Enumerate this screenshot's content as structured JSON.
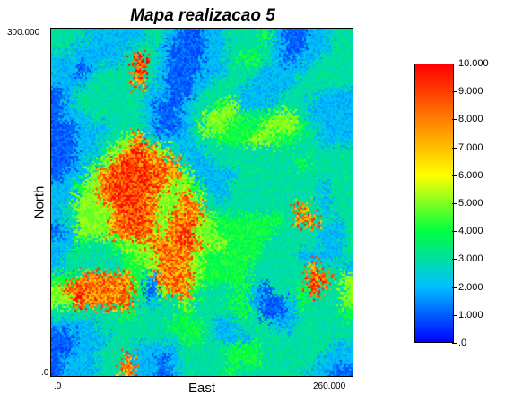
{
  "chart_data": {
    "type": "heatmap",
    "title": "Mapa realizacao 5",
    "xlabel": "East",
    "ylabel": "North",
    "xlim": [
      0,
      260
    ],
    "ylim": [
      0,
      300
    ],
    "x_tick_labels": [
      ".0",
      "260.000"
    ],
    "y_tick_labels": [
      ".0",
      "300.000"
    ],
    "colorbar": {
      "range": [
        0,
        10
      ],
      "tick_labels": [
        ".0",
        "1.000",
        "2.000",
        "3.000",
        "4.000",
        "5.000",
        "6.000",
        "7.000",
        "8.000",
        "9.000",
        "10.000"
      ],
      "colors": [
        "#0000ff",
        "#00bfff",
        "#00ff40",
        "#ffff00",
        "#ff8000",
        "#ff0000"
      ]
    },
    "grid": {
      "cols": 26,
      "rows": 30,
      "cell_size_data_units": 10,
      "values": [
        [
          3,
          3,
          3,
          2,
          2,
          2,
          2,
          2,
          3,
          3,
          2,
          1,
          1,
          2,
          2,
          3,
          3,
          3,
          4,
          2,
          1,
          1,
          2,
          2,
          3,
          3
        ],
        [
          3,
          3,
          2,
          2,
          2,
          2,
          2,
          3,
          3,
          2,
          1,
          1,
          1,
          2,
          2,
          3,
          3,
          3,
          3,
          2,
          1,
          1,
          2,
          2,
          3,
          3
        ],
        [
          2,
          2,
          2,
          2,
          2,
          2,
          3,
          9,
          3,
          2,
          1,
          1,
          1,
          2,
          2,
          3,
          4,
          4,
          3,
          2,
          1,
          2,
          2,
          3,
          3,
          3
        ],
        [
          2,
          2,
          1,
          2,
          3,
          3,
          3,
          9,
          3,
          2,
          1,
          1,
          1,
          2,
          2,
          3,
          3,
          3,
          2,
          2,
          2,
          2,
          3,
          3,
          3,
          3
        ],
        [
          2,
          2,
          2,
          3,
          3,
          3,
          3,
          8,
          3,
          2,
          1,
          1,
          2,
          2,
          3,
          3,
          3,
          2,
          2,
          2,
          2,
          3,
          3,
          3,
          3,
          3
        ],
        [
          1,
          2,
          3,
          3,
          3,
          3,
          3,
          3,
          2,
          2,
          1,
          1,
          2,
          3,
          3,
          3,
          2,
          2,
          2,
          2,
          3,
          3,
          3,
          2,
          2,
          2
        ],
        [
          1,
          2,
          3,
          3,
          3,
          3,
          3,
          3,
          2,
          1,
          1,
          2,
          3,
          3,
          4,
          5,
          2,
          2,
          2,
          3,
          3,
          3,
          2,
          2,
          2,
          2
        ],
        [
          1,
          2,
          2,
          3,
          3,
          3,
          3,
          3,
          2,
          1,
          1,
          2,
          3,
          5,
          5,
          5,
          4,
          3,
          4,
          5,
          5,
          3,
          2,
          2,
          2,
          2
        ],
        [
          1,
          1,
          2,
          2,
          2,
          3,
          3,
          3,
          2,
          1,
          1,
          2,
          3,
          5,
          5,
          4,
          4,
          4,
          5,
          5,
          5,
          4,
          3,
          2,
          2,
          2
        ],
        [
          1,
          1,
          2,
          2,
          3,
          3,
          5,
          8,
          3,
          2,
          2,
          2,
          3,
          3,
          4,
          4,
          4,
          5,
          5,
          4,
          4,
          3,
          3,
          2,
          2,
          2
        ],
        [
          1,
          1,
          2,
          2,
          3,
          5,
          8,
          9,
          8,
          5,
          3,
          2,
          2,
          3,
          3,
          3,
          3,
          3,
          3,
          3,
          3,
          3,
          3,
          3,
          3,
          3
        ],
        [
          1,
          1,
          2,
          3,
          5,
          8,
          9,
          9,
          8,
          8,
          8,
          3,
          2,
          2,
          3,
          3,
          3,
          3,
          3,
          3,
          3,
          4,
          3,
          3,
          3,
          3
        ],
        [
          1,
          2,
          2,
          5,
          8,
          9,
          9,
          9,
          9,
          8,
          8,
          5,
          2,
          2,
          2,
          2,
          3,
          3,
          3,
          3,
          3,
          3,
          3,
          3,
          3,
          3
        ],
        [
          2,
          2,
          4,
          5,
          8,
          9,
          9,
          9,
          9,
          8,
          5,
          5,
          4,
          2,
          2,
          3,
          3,
          3,
          3,
          3,
          3,
          3,
          3,
          2,
          3,
          3
        ],
        [
          2,
          2,
          5,
          5,
          8,
          9,
          9,
          9,
          8,
          5,
          5,
          8,
          5,
          3,
          2,
          3,
          3,
          3,
          3,
          3,
          3,
          3,
          3,
          2,
          3,
          3
        ],
        [
          2,
          3,
          5,
          5,
          5,
          8,
          9,
          9,
          8,
          5,
          5,
          8,
          8,
          3,
          3,
          3,
          3,
          3,
          3,
          3,
          3,
          8,
          3,
          2,
          3,
          3
        ],
        [
          2,
          3,
          5,
          5,
          5,
          8,
          9,
          9,
          8,
          5,
          8,
          8,
          8,
          5,
          4,
          4,
          4,
          4,
          4,
          4,
          3,
          8,
          8,
          3,
          2,
          3
        ],
        [
          1,
          2,
          5,
          5,
          5,
          8,
          8,
          9,
          8,
          5,
          8,
          9,
          5,
          5,
          4,
          4,
          4,
          4,
          4,
          3,
          3,
          3,
          3,
          2,
          2,
          3
        ],
        [
          2,
          2,
          4,
          3,
          3,
          4,
          5,
          5,
          8,
          8,
          8,
          9,
          8,
          5,
          5,
          4,
          4,
          4,
          3,
          3,
          3,
          3,
          3,
          2,
          2,
          3
        ],
        [
          2,
          3,
          3,
          3,
          3,
          3,
          4,
          5,
          5,
          8,
          8,
          8,
          5,
          4,
          4,
          4,
          4,
          4,
          3,
          3,
          3,
          2,
          2,
          2,
          2,
          3
        ],
        [
          2,
          3,
          3,
          3,
          3,
          3,
          4,
          4,
          5,
          8,
          8,
          8,
          5,
          4,
          4,
          4,
          4,
          3,
          3,
          3,
          3,
          3,
          8,
          3,
          3,
          2
        ],
        [
          4,
          4,
          8,
          8,
          8,
          8,
          8,
          4,
          2,
          8,
          8,
          8,
          5,
          4,
          4,
          4,
          4,
          3,
          3,
          3,
          3,
          3,
          9,
          8,
          3,
          5
        ],
        [
          5,
          8,
          9,
          8,
          8,
          8,
          8,
          4,
          1,
          5,
          8,
          8,
          4,
          3,
          3,
          3,
          4,
          2,
          1,
          3,
          3,
          4,
          9,
          3,
          3,
          5
        ],
        [
          5,
          5,
          9,
          8,
          8,
          8,
          8,
          3,
          2,
          3,
          3,
          5,
          3,
          3,
          3,
          4,
          4,
          2,
          1,
          1,
          2,
          4,
          3,
          3,
          3,
          5
        ],
        [
          3,
          3,
          3,
          3,
          3,
          3,
          4,
          3,
          3,
          3,
          3,
          4,
          3,
          3,
          3,
          3,
          4,
          3,
          1,
          1,
          2,
          3,
          3,
          3,
          3,
          4
        ],
        [
          2,
          2,
          2,
          2,
          3,
          3,
          3,
          3,
          3,
          3,
          4,
          4,
          4,
          3,
          2,
          2,
          3,
          3,
          3,
          2,
          2,
          3,
          3,
          3,
          3,
          3
        ],
        [
          1,
          1,
          2,
          2,
          2,
          3,
          3,
          3,
          3,
          3,
          3,
          4,
          4,
          3,
          2,
          2,
          2,
          3,
          3,
          3,
          3,
          3,
          3,
          3,
          3,
          3
        ],
        [
          1,
          1,
          2,
          2,
          3,
          3,
          3,
          2,
          2,
          2,
          2,
          3,
          3,
          3,
          3,
          4,
          4,
          4,
          3,
          3,
          3,
          3,
          3,
          3,
          2,
          2
        ],
        [
          1,
          2,
          2,
          2,
          3,
          3,
          8,
          2,
          2,
          1,
          2,
          3,
          3,
          3,
          3,
          4,
          4,
          4,
          3,
          3,
          3,
          3,
          3,
          2,
          2,
          2
        ],
        [
          1,
          2,
          2,
          2,
          3,
          3,
          8,
          2,
          2,
          1,
          2,
          3,
          3,
          3,
          3,
          4,
          3,
          3,
          3,
          3,
          3,
          3,
          2,
          2,
          1,
          1
        ]
      ]
    }
  }
}
